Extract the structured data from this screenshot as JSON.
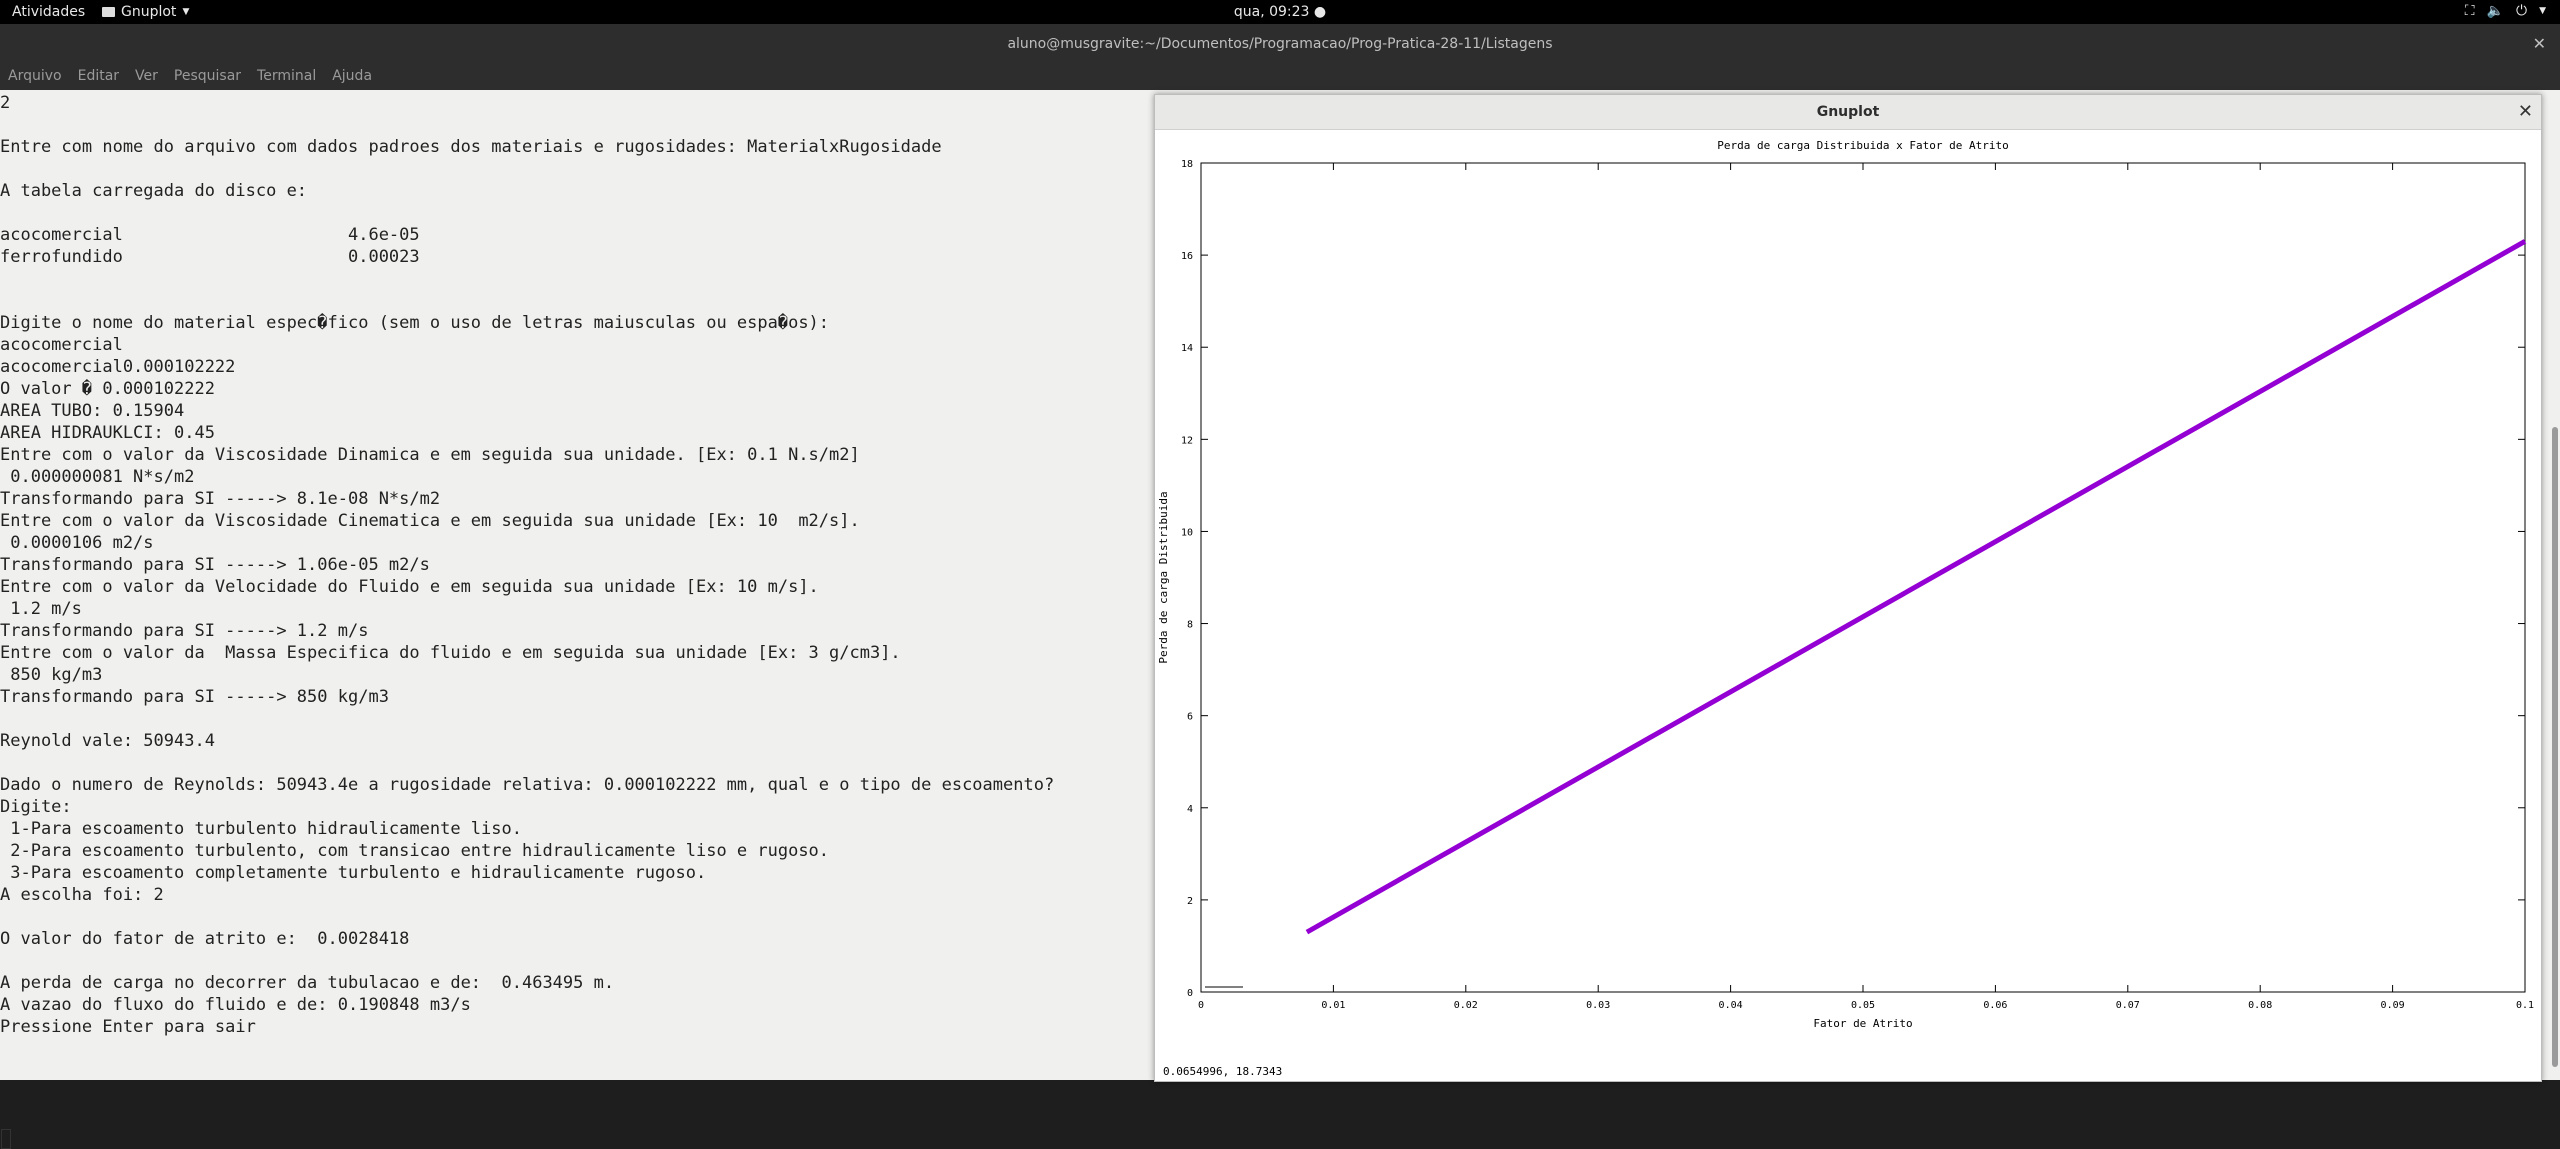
{
  "topbar": {
    "activities": "Atividades",
    "app_name": "Gnuplot",
    "clock": "qua, 09:23 ●"
  },
  "terminal": {
    "title": "aluno@musgravite:~/Documentos/Programacao/Prog-Pratica-28-11/Listagens",
    "menu": [
      "Arquivo",
      "Editar",
      "Ver",
      "Pesquisar",
      "Terminal",
      "Ajuda"
    ],
    "lines": [
      "2",
      "",
      "Entre com nome do arquivo com dados padroes dos materiais e rugosidades: MaterialxRugosidade",
      "",
      "A tabela carregada do disco e:",
      "",
      "acocomercial                      4.6e-05",
      "ferrofundido                      0.00023",
      "",
      "",
      "Digite o nome do material espec�fico (sem o uso de letras maiusculas ou espa�os):",
      "acocomercial",
      "acocomercial0.000102222",
      "O valor � 0.000102222",
      "AREA TUBO: 0.15904",
      "AREA HIDRAUKLCI: 0.45",
      "Entre com o valor da Viscosidade Dinamica e em seguida sua unidade. [Ex: 0.1 N.s/m2]",
      " 0.000000081 N*s/m2",
      "Transformando para SI -----> 8.1e-08 N*s/m2",
      "Entre com o valor da Viscosidade Cinematica e em seguida sua unidade [Ex: 10  m2/s].",
      " 0.0000106 m2/s",
      "Transformando para SI -----> 1.06e-05 m2/s",
      "Entre com o valor da Velocidade do Fluido e em seguida sua unidade [Ex: 10 m/s].",
      " 1.2 m/s",
      "Transformando para SI -----> 1.2 m/s",
      "Entre com o valor da  Massa Especifica do fluido e em seguida sua unidade [Ex: 3 g/cm3].",
      " 850 kg/m3",
      "Transformando para SI -----> 850 kg/m3",
      "",
      "Reynold vale: 50943.4",
      "",
      "Dado o numero de Reynolds: 50943.4e a rugosidade relativa: 0.000102222 mm, qual e o tipo de escoamento?",
      "Digite:",
      " 1-Para escoamento turbulento hidraulicamente liso.",
      " 2-Para escoamento turbulento, com transicao entre hidraulicamente liso e rugoso.",
      " 3-Para escoamento completamente turbulento e hidraulicamente rugoso.",
      "A escolha foi: 2",
      "",
      "O valor do fator de atrito e:  0.0028418",
      "",
      "A perda de carga no decorrer da tubulacao e de:  0.463495 m.",
      "A vazao do fluxo do fluido e de: 0.190848 m3/s",
      "Pressione Enter para sair"
    ]
  },
  "gnuplot": {
    "window_title": "Gnuplot",
    "status": "0.0654996,  18.7343"
  },
  "chart_data": {
    "type": "line",
    "title": "Perda de carga Distribuida x Fator de Atrito",
    "xlabel": "Fator de Atrito",
    "ylabel": "Perda de carga Distribuida",
    "xlim": [
      0,
      0.1
    ],
    "ylim": [
      0,
      18
    ],
    "xticks": [
      "0",
      "0.01",
      "0.02",
      "0.03",
      "0.04",
      "0.05",
      "0.06",
      "0.07",
      "0.08",
      "0.09",
      "0.1"
    ],
    "yticks": [
      "0",
      "2",
      "4",
      "6",
      "8",
      "10",
      "12",
      "14",
      "16",
      "18"
    ],
    "grid": false,
    "series": [
      {
        "color": "#9400d3",
        "x": [
          0.008,
          0.1
        ],
        "y": [
          1.3,
          16.3
        ]
      }
    ]
  }
}
